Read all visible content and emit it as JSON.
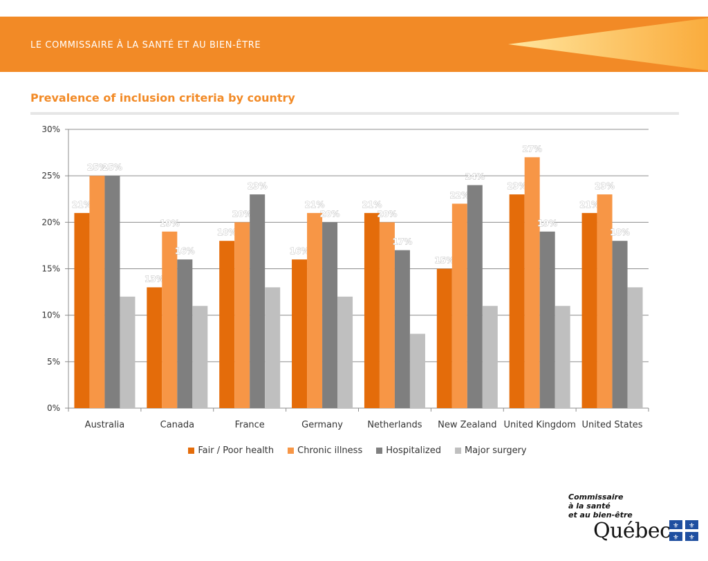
{
  "header": {
    "banner_title": "LE COMMISSAIRE À LA SANTÉ ET AU BIEN-ÊTRE",
    "page_title": "Prevalence of inclusion criteria by country"
  },
  "colors": {
    "banner": "#f28a26",
    "title": "#f28a26"
  },
  "chart_data": {
    "type": "bar",
    "title": "",
    "xlabel": "",
    "ylabel": "",
    "ylim": [
      0,
      30
    ],
    "y_ticks": [
      "0%",
      "5%",
      "10%",
      "15%",
      "20%",
      "25%",
      "30%"
    ],
    "grid": true,
    "legend_position": "bottom",
    "categories": [
      "Australia",
      "Canada",
      "France",
      "Germany",
      "Netherlands",
      "New Zealand",
      "United Kingdom",
      "United States"
    ],
    "series": [
      {
        "name": "Fair / Poor health",
        "color": "#e46c0a",
        "values": [
          21,
          13,
          18,
          16,
          21,
          15,
          23,
          21
        ],
        "labels": [
          "21%",
          "13%",
          "18%",
          "16%",
          "21%",
          "15%",
          "23%",
          "21%"
        ]
      },
      {
        "name": "Chronic illness",
        "color": "#f79646",
        "values": [
          25,
          19,
          20,
          21,
          20,
          22,
          27,
          23
        ],
        "labels": [
          "25%",
          "19%",
          "20%",
          "21%",
          "20%",
          "22%",
          "27%",
          "23%"
        ]
      },
      {
        "name": "Hospitalized",
        "color": "#7f7f7f",
        "values": [
          25,
          16,
          23,
          20,
          17,
          24,
          19,
          18
        ],
        "labels": [
          "25%",
          "16%",
          "23%",
          "20%",
          "17%",
          "24%",
          "19%",
          "18%"
        ]
      },
      {
        "name": "Major surgery",
        "color": "#bfbfbf",
        "values": [
          12,
          11,
          13,
          12,
          8,
          11,
          11,
          13
        ],
        "labels": [
          "",
          "",
          "",
          "",
          "",
          "",
          "",
          ""
        ]
      }
    ]
  },
  "logo": {
    "line1": "Commissaire",
    "line2": "à la santé",
    "line3": "et au bien-être",
    "wordmark": "Québec"
  }
}
